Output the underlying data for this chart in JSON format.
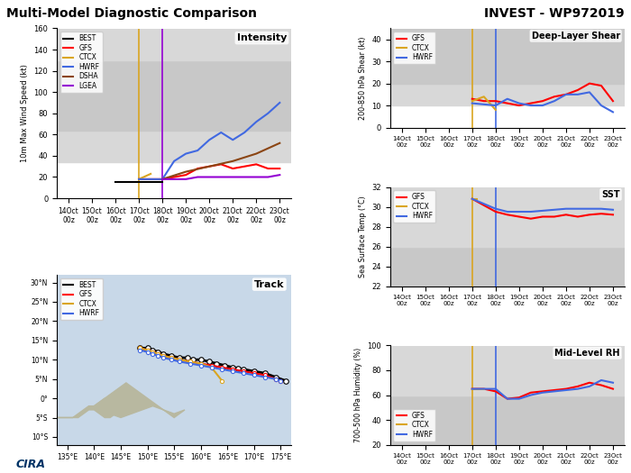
{
  "title_left": "Multi-Model Diagnostic Comparison",
  "title_right": "INVEST - WP972019",
  "x_ticks_labels": [
    "14Oct\n00z",
    "15Oct\n00z",
    "16Oct\n00z",
    "17Oct\n00z",
    "18Oct\n00z",
    "19Oct\n00z",
    "20Oct\n00z",
    "21Oct\n00z",
    "22Oct\n00z",
    "23Oct\n00z"
  ],
  "x_ticks_vals": [
    0,
    1,
    2,
    3,
    4,
    5,
    6,
    7,
    8,
    9
  ],
  "vline_yellow_x": 3,
  "vline_purple_x": 4,
  "vline_blue_x": 4,
  "intensity": {
    "title": "Intensity",
    "ylabel": "10m Max Wind Speed (kt)",
    "ylim": [
      0,
      160
    ],
    "yticks": [
      0,
      20,
      40,
      60,
      80,
      100,
      120,
      140,
      160
    ],
    "BEST": {
      "x": [
        2,
        3,
        3.5,
        4
      ],
      "y": [
        15,
        15,
        15,
        15
      ],
      "color": "black",
      "lw": 1.5
    },
    "GFS": {
      "x": [
        3,
        4,
        4.5,
        5,
        5.5,
        6,
        6.5,
        7,
        7.5,
        8,
        8.5,
        9
      ],
      "y": [
        18,
        18,
        20,
        22,
        28,
        30,
        32,
        28,
        30,
        32,
        28,
        28
      ],
      "color": "red",
      "lw": 1.5
    },
    "CTCX": {
      "x": [
        3,
        3.5
      ],
      "y": [
        18,
        23
      ],
      "color": "#DAA520",
      "lw": 1.5
    },
    "HWRF": {
      "x": [
        3,
        4,
        4.5,
        5,
        5.5,
        6,
        6.5,
        7,
        7.5,
        8,
        8.5,
        9
      ],
      "y": [
        18,
        18,
        35,
        42,
        45,
        55,
        62,
        55,
        62,
        72,
        80,
        90
      ],
      "color": "#4169E1",
      "lw": 1.5
    },
    "DSHA": {
      "x": [
        4,
        5,
        6,
        7,
        8,
        9
      ],
      "y": [
        18,
        25,
        30,
        35,
        42,
        52
      ],
      "color": "#8B4513",
      "lw": 1.5
    },
    "LGEA": {
      "x": [
        4,
        4.5,
        5,
        5.5,
        6,
        6.5,
        7,
        7.5,
        8,
        8.5,
        9
      ],
      "y": [
        18,
        18,
        18,
        20,
        20,
        20,
        20,
        20,
        20,
        20,
        22
      ],
      "color": "#9400D3",
      "lw": 1.5
    }
  },
  "shear": {
    "title": "Deep-Layer Shear",
    "ylabel": "200-850 hPa Shear (kt)",
    "ylim": [
      0,
      45
    ],
    "yticks": [
      0,
      10,
      20,
      30,
      40
    ],
    "GFS": {
      "x": [
        3,
        3.5,
        4,
        4.5,
        5,
        5.5,
        6,
        6.5,
        7,
        7.5,
        8,
        8.5,
        9
      ],
      "y": [
        13,
        12,
        12,
        11,
        10,
        11,
        12,
        14,
        15,
        17,
        20,
        19,
        12
      ],
      "color": "red",
      "lw": 1.5
    },
    "CTCX": {
      "x": [
        3,
        3.5,
        4
      ],
      "y": [
        12,
        14,
        8
      ],
      "color": "#DAA520",
      "lw": 1.5
    },
    "HWRF": {
      "x": [
        3,
        4,
        4.5,
        5,
        5.5,
        6,
        6.5,
        7,
        7.5,
        8,
        8.5,
        9
      ],
      "y": [
        11,
        10,
        13,
        11,
        10,
        10,
        12,
        15,
        15,
        16,
        10,
        7
      ],
      "color": "#4169E1",
      "lw": 1.5
    }
  },
  "sst": {
    "title": "SST",
    "ylabel": "Sea Surface Temp (°C)",
    "ylim": [
      22,
      32
    ],
    "yticks": [
      22,
      24,
      26,
      28,
      30,
      32
    ],
    "GFS": {
      "x": [
        3,
        4,
        4.5,
        5,
        5.5,
        6,
        6.5,
        7,
        7.5,
        8,
        8.5,
        9
      ],
      "y": [
        30.8,
        29.5,
        29.2,
        29.0,
        28.8,
        29.0,
        29.0,
        29.2,
        29.0,
        29.2,
        29.3,
        29.2
      ],
      "color": "red",
      "lw": 1.5
    },
    "CTCX": {
      "x": [
        3,
        3.2
      ],
      "y": [
        30.8,
        30.8
      ],
      "color": "#DAA520",
      "lw": 1.5
    },
    "HWRF": {
      "x": [
        3,
        4,
        4.5,
        5,
        5.5,
        6,
        6.5,
        7,
        7.5,
        8,
        8.5,
        9
      ],
      "y": [
        30.8,
        29.8,
        29.5,
        29.5,
        29.5,
        29.6,
        29.7,
        29.8,
        29.8,
        29.8,
        29.8,
        29.7
      ],
      "color": "#4169E1",
      "lw": 1.5
    }
  },
  "rh": {
    "title": "Mid-Level RH",
    "ylabel": "700-500 hPa Humidity (%)",
    "ylim": [
      20,
      100
    ],
    "yticks": [
      20,
      40,
      60,
      80,
      100
    ],
    "GFS": {
      "x": [
        3,
        3.5,
        4,
        4.5,
        5,
        5.5,
        6,
        6.5,
        7,
        7.5,
        8,
        8.5,
        9
      ],
      "y": [
        65,
        65,
        63,
        57,
        58,
        62,
        63,
        64,
        65,
        67,
        70,
        68,
        65
      ],
      "color": "red",
      "lw": 1.5
    },
    "CTCX": {
      "x": [
        3,
        3.5
      ],
      "y": [
        65,
        65
      ],
      "color": "#DAA520",
      "lw": 1.5
    },
    "HWRF": {
      "x": [
        3,
        4,
        4.5,
        5,
        5.5,
        6,
        6.5,
        7,
        7.5,
        8,
        8.5,
        9
      ],
      "y": [
        65,
        65,
        57,
        57,
        60,
        62,
        63,
        64,
        65,
        67,
        72,
        70
      ],
      "color": "#4169E1",
      "lw": 1.5
    }
  },
  "track": {
    "title": "Track",
    "xlim": [
      133,
      177
    ],
    "ylim": [
      -12,
      32
    ],
    "xticks": [
      135,
      140,
      145,
      150,
      155,
      160,
      165,
      170,
      175
    ],
    "xtick_labels": [
      "135°E",
      "140°E",
      "145°E",
      "150°E",
      "155°E",
      "160°E",
      "165°E",
      "170°E",
      "175°E"
    ],
    "yticks": [
      -10,
      -5,
      0,
      5,
      10,
      15,
      20,
      25,
      30
    ],
    "ytick_labels": [
      "10°S",
      "5°S",
      "0°",
      "5°N",
      "10°N",
      "15°N",
      "20°N",
      "25°N",
      "30°N"
    ],
    "BEST": {
      "x": [
        148.5,
        150,
        151,
        152,
        153,
        154.5,
        156,
        157.5,
        158.5,
        160,
        161.5,
        163,
        164.5,
        166,
        167,
        168,
        170,
        172,
        174,
        176
      ],
      "y": [
        13,
        13,
        12.5,
        12,
        11.5,
        11,
        10.5,
        10.5,
        10,
        10,
        9.5,
        9,
        8.5,
        8,
        7.8,
        7.5,
        7,
        6.5,
        5.5,
        4.5
      ],
      "color": "black",
      "lw": 2,
      "marker": "o",
      "ms": 4
    },
    "GFS": {
      "x": [
        148.5,
        150,
        151,
        152,
        153,
        154.5,
        156,
        158,
        160,
        162,
        164,
        166,
        168,
        170,
        172,
        174,
        175
      ],
      "y": [
        13,
        12.5,
        12,
        11.5,
        11,
        10.5,
        10,
        9.5,
        9,
        8.5,
        8,
        7.5,
        7,
        6.5,
        6,
        5,
        4.5
      ],
      "color": "red",
      "lw": 1.5,
      "marker": "o",
      "ms": 3
    },
    "CTCX": {
      "x": [
        148.5,
        150,
        151,
        152,
        153,
        154.5,
        156,
        158,
        160,
        162,
        164
      ],
      "y": [
        13,
        12.5,
        12,
        11.5,
        11,
        10.5,
        10,
        9.5,
        9,
        8,
        4.5
      ],
      "color": "#DAA520",
      "lw": 1.5,
      "marker": "o",
      "ms": 3
    },
    "HWRF": {
      "x": [
        148.5,
        150,
        151,
        152,
        153,
        154.5,
        156,
        158,
        160,
        162,
        164,
        166,
        168,
        170,
        172,
        174,
        175
      ],
      "y": [
        12.5,
        12,
        11.5,
        11,
        10.5,
        10,
        9.5,
        9,
        8.5,
        8,
        7.5,
        7,
        6.5,
        6,
        5.5,
        5,
        4.5
      ],
      "color": "#4169E1",
      "lw": 1.5,
      "marker": "o",
      "ms": 3
    },
    "land_patches": [
      {
        "x": [
          133,
          134,
          135,
          136,
          137,
          138,
          139,
          140,
          141,
          142,
          143,
          144,
          145,
          145,
          144,
          143,
          142,
          141,
          140,
          139,
          138,
          137,
          136,
          135,
          134,
          133
        ],
        "y": [
          -5,
          -5,
          -5,
          -5,
          -4,
          -3,
          -2,
          -2,
          -1,
          0,
          0,
          -1,
          -2,
          -3,
          -4,
          -5,
          -5,
          -4,
          -3,
          -3,
          -4,
          -5,
          -5,
          -5,
          -5,
          -5
        ]
      },
      {
        "x": [
          140,
          141,
          142,
          143,
          144,
          145,
          146,
          147,
          148,
          149,
          150,
          151,
          152,
          153,
          154,
          155,
          156,
          157,
          155,
          153,
          151,
          149,
          147,
          145,
          143,
          141,
          140
        ],
        "y": [
          -2,
          -1,
          0,
          1,
          2,
          3,
          4,
          3,
          2,
          1,
          0,
          -1,
          -2,
          -3,
          -4,
          -5,
          -4,
          -3,
          -4,
          -3,
          -2,
          -3,
          -4,
          -5,
          -4,
          -3,
          -2
        ]
      }
    ]
  }
}
